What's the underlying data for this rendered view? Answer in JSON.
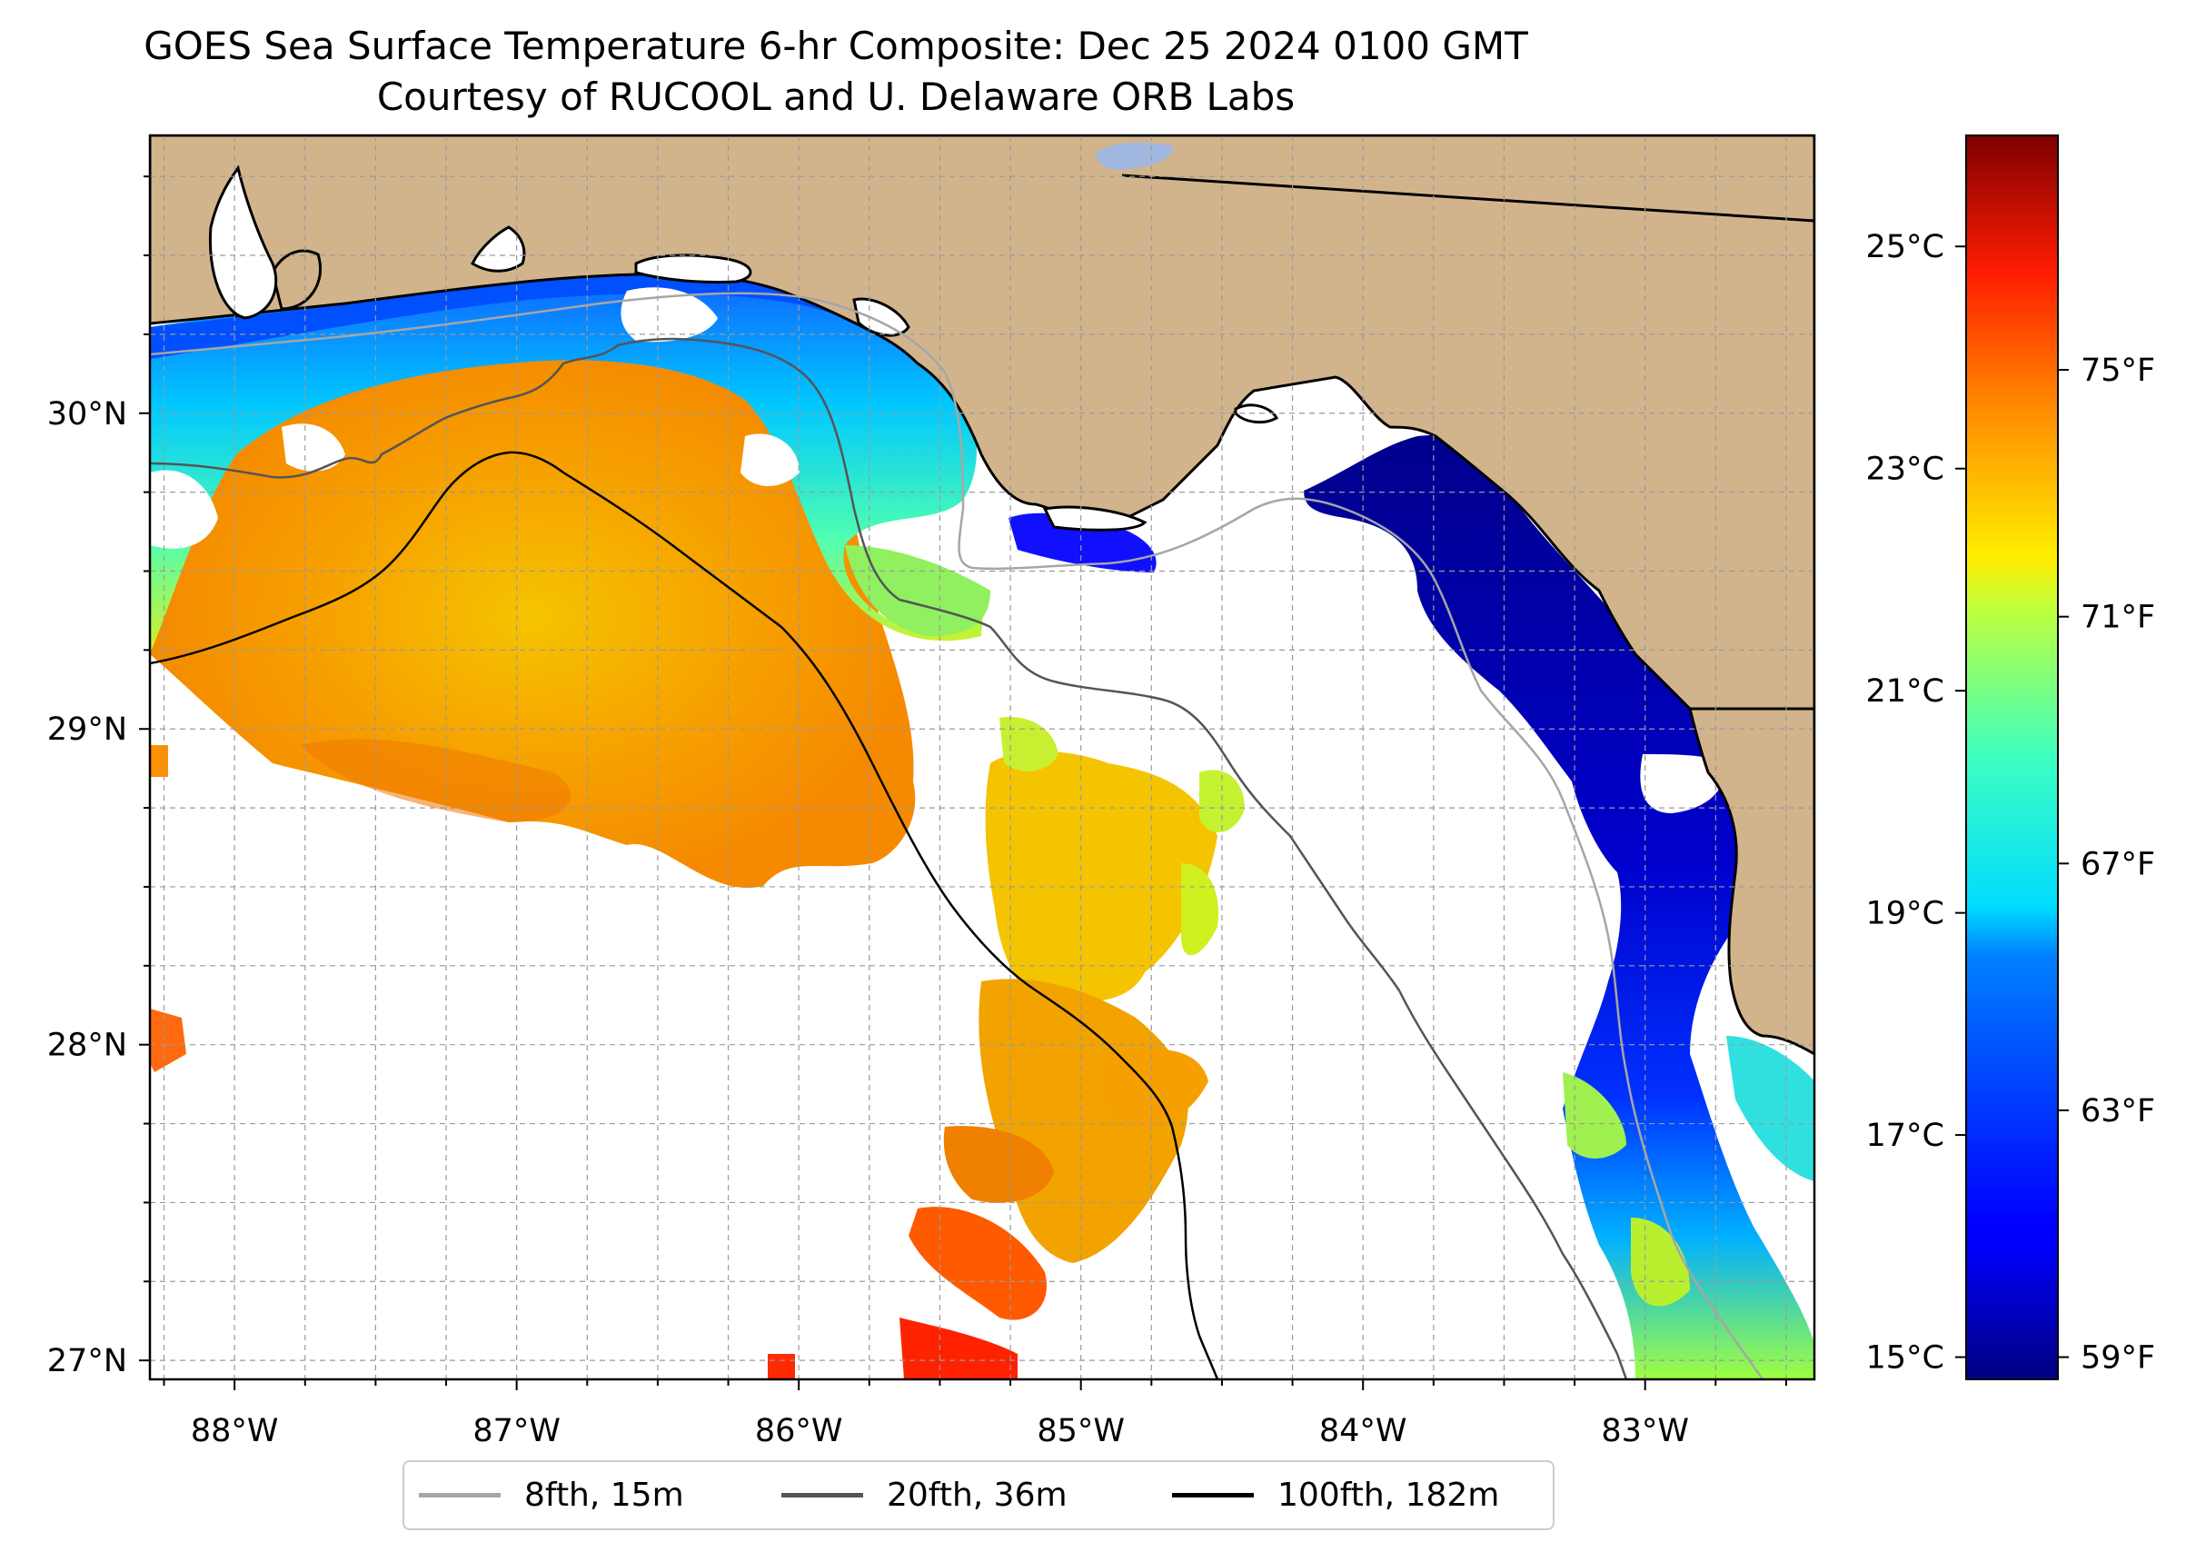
{
  "title": "GOES Sea Surface Temperature 6-hr Composite: Dec 25 2024 0100 GMT",
  "subtitle": "Courtesy of RUCOOL and U. Delaware ORB Labs",
  "map": {
    "lon_range": [
      -88.3,
      -82.4
    ],
    "lat_range": [
      26.94,
      30.88
    ],
    "land_color": "#d2b48c",
    "gridlines": true
  },
  "lon_ticks": [
    {
      "value": -88,
      "label": "88°W"
    },
    {
      "value": -87,
      "label": "87°W"
    },
    {
      "value": -86,
      "label": "86°W"
    },
    {
      "value": -85,
      "label": "85°W"
    },
    {
      "value": -84,
      "label": "84°W"
    },
    {
      "value": -83,
      "label": "83°W"
    }
  ],
  "lat_ticks": [
    {
      "value": 27,
      "label": "27°N"
    },
    {
      "value": 28,
      "label": "28°N"
    },
    {
      "value": 29,
      "label": "29°N"
    },
    {
      "value": 30,
      "label": "30°N"
    }
  ],
  "colorbar": {
    "colormap": "jet",
    "range_c": [
      14.8,
      26.0
    ],
    "celsius_ticks": [
      {
        "value": 15,
        "label": "15°C"
      },
      {
        "value": 17,
        "label": "17°C"
      },
      {
        "value": 19,
        "label": "19°C"
      },
      {
        "value": 21,
        "label": "21°C"
      },
      {
        "value": 23,
        "label": "23°C"
      },
      {
        "value": 25,
        "label": "25°C"
      }
    ],
    "fahrenheit_ticks": [
      {
        "value": 59,
        "label": "59°F"
      },
      {
        "value": 63,
        "label": "63°F"
      },
      {
        "value": 67,
        "label": "67°F"
      },
      {
        "value": 71,
        "label": "71°F"
      },
      {
        "value": 75,
        "label": "75°F"
      }
    ]
  },
  "legend": [
    {
      "label": "8fth, 15m",
      "color": "#a6a6a6"
    },
    {
      "label": "20fth, 36m",
      "color": "#555555"
    },
    {
      "label": "100fth, 182m",
      "color": "#000000"
    }
  ]
}
